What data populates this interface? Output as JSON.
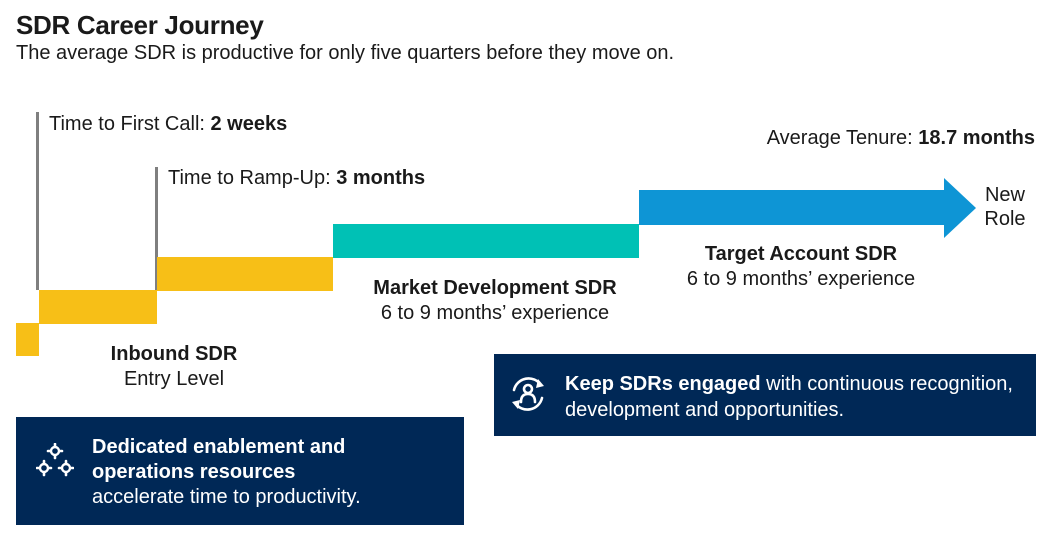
{
  "header": {
    "title": "SDR Career Journey",
    "subtitle": "The average SDR is productive for only five quarters before they move on."
  },
  "milestones": {
    "first_call_label": "Time to First Call: ",
    "first_call_value": "2 weeks",
    "ramp_up_label": "Time to Ramp-Up: ",
    "ramp_up_value": "3 months",
    "tenure_label": "Average Tenure: ",
    "tenure_value": "18.7 months"
  },
  "stages": [
    {
      "name": "Inbound SDR",
      "desc": "Entry Level"
    },
    {
      "name": "Market Development SDR",
      "desc": "6 to 9 months’ experience"
    },
    {
      "name": "Target Account SDR",
      "desc": "6 to 9 months’ experience"
    }
  ],
  "new_role": {
    "line1": "New",
    "line2": "Role"
  },
  "callouts": {
    "enablement": {
      "icon": "gears-icon",
      "bold": "Dedicated enablement and operations resources",
      "rest": "accelerate time to productivity."
    },
    "engage": {
      "icon": "person-cycle-icon",
      "bold": "Keep SDRs engaged",
      "rest": " with continuous recognition, development and opportunities."
    }
  },
  "colors": {
    "yellow": "#f7bf17",
    "teal": "#00c1b5",
    "blue": "#0e95d5",
    "navy": "#002856",
    "grey_line": "#7f7f7f"
  }
}
